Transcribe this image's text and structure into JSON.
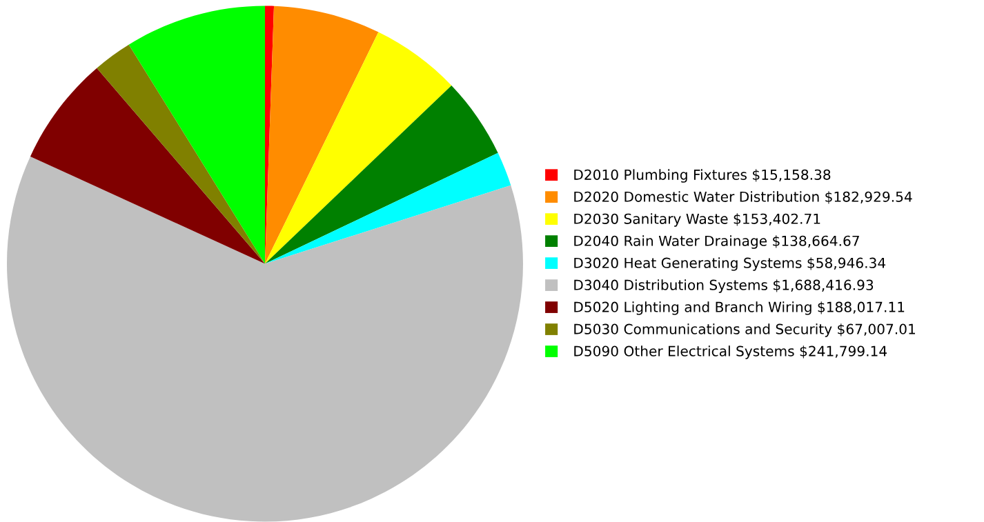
{
  "chart_data": {
    "type": "pie",
    "categories": [
      "D2010 Plumbing Fixtures",
      "D2020 Domestic Water Distribution",
      "D2030 Sanitary Waste",
      "D2040 Rain Water Drainage",
      "D3020 Heat Generating Systems",
      "D3040 Distribution Systems",
      "D5020 Lighting and Branch Wiring",
      "D5030 Communications and Security",
      "D5090 Other Electrical Systems"
    ],
    "values": [
      15158.38,
      182929.54,
      153402.71,
      138664.67,
      58946.34,
      1688416.93,
      188017.11,
      67007.01,
      241799.14
    ],
    "value_labels": [
      "$15,158.38",
      "$182,929.54",
      "$153,402.71",
      "$138,664.67",
      "$58,946.34",
      "$1,688,416.93",
      "$188,017.11",
      "$67,007.01",
      "$241,799.14"
    ],
    "colors": [
      "#ff0000",
      "#ff8c00",
      "#ffff00",
      "#008000",
      "#00ffff",
      "#c0c0c0",
      "#800000",
      "#808000",
      "#00ff00"
    ],
    "legend": "right"
  }
}
